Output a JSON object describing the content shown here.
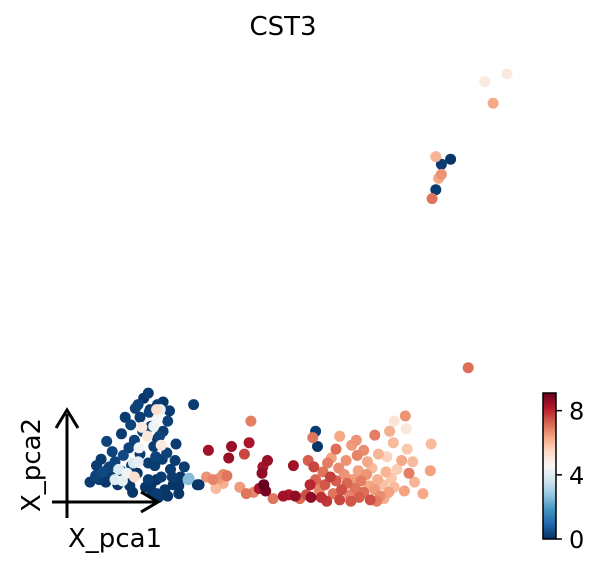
{
  "chart_data": {
    "type": "scatter",
    "title": "CST3",
    "xlabel": "X_pca1",
    "ylabel": "X_pca2",
    "xlim": [
      0,
      30
    ],
    "ylim": [
      0,
      29
    ],
    "grid": false,
    "colormap": "RdBu_r",
    "colorbar": {
      "vmin": 0,
      "vmax": 9.1,
      "ticks": [
        "0",
        "4",
        "8"
      ],
      "tick_values": [
        0,
        4,
        8
      ],
      "placement": "right"
    },
    "points": [
      {
        "pc1": 3.2,
        "pc2": 2.3,
        "v": 0.3
      },
      {
        "pc1": 3.6,
        "pc2": 2.0,
        "v": 0.2
      },
      {
        "pc1": 4.0,
        "pc2": 2.6,
        "v": 0.4
      },
      {
        "pc1": 4.3,
        "pc2": 1.8,
        "v": 0.1
      },
      {
        "pc1": 4.6,
        "pc2": 2.9,
        "v": 0.3
      },
      {
        "pc1": 4.9,
        "pc2": 2.2,
        "v": 0.2
      },
      {
        "pc1": 5.3,
        "pc2": 3.4,
        "v": 0.3
      },
      {
        "pc1": 5.6,
        "pc2": 1.6,
        "v": 0.1
      },
      {
        "pc1": 5.9,
        "pc2": 2.7,
        "v": 0.2
      },
      {
        "pc1": 6.2,
        "pc2": 3.9,
        "v": 0.4
      },
      {
        "pc1": 6.5,
        "pc2": 2.1,
        "v": 0.2
      },
      {
        "pc1": 6.8,
        "pc2": 4.5,
        "v": 0.3
      },
      {
        "pc1": 7.1,
        "pc2": 3.1,
        "v": 0.2
      },
      {
        "pc1": 7.4,
        "pc2": 5.1,
        "v": 0.3
      },
      {
        "pc1": 7.7,
        "pc2": 2.5,
        "v": 0.1
      },
      {
        "pc1": 8.0,
        "pc2": 4.0,
        "v": 0.2
      },
      {
        "pc1": 8.3,
        "pc2": 5.8,
        "v": 0.3
      },
      {
        "pc1": 8.6,
        "pc2": 1.4,
        "v": 0.1
      },
      {
        "pc1": 8.9,
        "pc2": 3.3,
        "v": 0.2
      },
      {
        "pc1": 9.2,
        "pc2": 6.2,
        "v": 0.4
      },
      {
        "pc1": 9.5,
        "pc2": 4.6,
        "v": 0.2
      },
      {
        "pc1": 9.8,
        "pc2": 2.0,
        "v": 0.1
      },
      {
        "pc1": 10.1,
        "pc2": 5.4,
        "v": 0.3
      },
      {
        "pc1": 10.4,
        "pc2": 3.6,
        "v": 0.2
      },
      {
        "pc1": 10.7,
        "pc2": 1.2,
        "v": 0.1
      },
      {
        "pc1": 11.0,
        "pc2": 6.6,
        "v": 0.3
      },
      {
        "pc1": 11.3,
        "pc2": 2.8,
        "v": 0.2
      },
      {
        "pc1": 11.6,
        "pc2": 1.6,
        "v": 0.1
      },
      {
        "pc1": 11.9,
        "pc2": 4.8,
        "v": 0.2
      },
      {
        "pc1": 12.2,
        "pc2": 0.9,
        "v": 0.1
      },
      {
        "pc1": 5.0,
        "pc2": 4.2,
        "v": 0.3
      },
      {
        "pc1": 6.0,
        "pc2": 5.6,
        "v": 0.2
      },
      {
        "pc1": 7.0,
        "pc2": 6.3,
        "v": 0.3
      },
      {
        "pc1": 8.0,
        "pc2": 6.9,
        "v": 0.2
      },
      {
        "pc1": 9.0,
        "pc2": 7.3,
        "v": 0.3
      },
      {
        "pc1": 9.9,
        "pc2": 7.9,
        "v": 0.2
      },
      {
        "pc1": 10.5,
        "pc2": 8.1,
        "v": 0.1
      },
      {
        "pc1": 11.2,
        "pc2": 7.4,
        "v": 0.2
      },
      {
        "pc1": 7.5,
        "pc2": 7.6,
        "v": 0.3
      },
      {
        "pc1": 6.4,
        "pc2": 6.9,
        "v": 0.2
      },
      {
        "pc1": 4.4,
        "pc2": 5.0,
        "v": 0.3
      },
      {
        "pc1": 3.8,
        "pc2": 3.6,
        "v": 0.2
      },
      {
        "pc1": 9.3,
        "pc2": 1.0,
        "v": 0.1
      },
      {
        "pc1": 10.0,
        "pc2": 0.6,
        "v": 0.1
      },
      {
        "pc1": 7.2,
        "pc2": 1.0,
        "v": 0.1
      },
      {
        "pc1": 11.8,
        "pc2": 3.5,
        "v": 0.2
      },
      {
        "pc1": 12.4,
        "pc2": 2.2,
        "v": 0.1
      },
      {
        "pc1": 12.8,
        "pc2": 3.0,
        "v": 0.2
      },
      {
        "pc1": 2.6,
        "pc2": 1.8,
        "v": 0.2
      },
      {
        "pc1": 8.4,
        "pc2": 8.4,
        "v": 0.1
      },
      {
        "pc1": 8.9,
        "pc2": 8.8,
        "v": 0.2
      },
      {
        "pc1": 6.1,
        "pc2": 1.9,
        "v": 4.2
      },
      {
        "pc1": 6.6,
        "pc2": 2.5,
        "v": 4.4
      },
      {
        "pc1": 5.3,
        "pc2": 2.0,
        "v": 4.0
      },
      {
        "pc1": 5.7,
        "pc2": 2.8,
        "v": 3.9
      },
      {
        "pc1": 7.4,
        "pc2": 2.2,
        "v": 5.3
      },
      {
        "pc1": 7.8,
        "pc2": 3.4,
        "v": 4.1
      },
      {
        "pc1": 9.5,
        "pc2": 6.2,
        "v": 4.3
      },
      {
        "pc1": 9.9,
        "pc2": 6.8,
        "v": 4.5
      },
      {
        "pc1": 10.2,
        "pc2": 7.5,
        "v": 4.2
      },
      {
        "pc1": 8.8,
        "pc2": 5.4,
        "v": 5.1
      },
      {
        "pc1": 8.2,
        "pc2": 6.1,
        "v": 5.0
      },
      {
        "pc1": 7.9,
        "pc2": 4.5,
        "v": 4.4
      },
      {
        "pc1": 7.3,
        "pc2": 3.3,
        "v": 3.8
      },
      {
        "pc1": 13.2,
        "pc2": 2.0,
        "v": 2.6
      },
      {
        "pc1": 7.8,
        "pc2": 7.9,
        "v": 0.3
      },
      {
        "pc1": 10.5,
        "pc2": 5.8,
        "v": 0.2
      },
      {
        "pc1": 11.5,
        "pc2": 2.2,
        "v": 0.2
      },
      {
        "pc1": 6.9,
        "pc2": 1.5,
        "v": 0.1
      },
      {
        "pc1": 13.8,
        "pc2": 7.9,
        "v": 0.2
      },
      {
        "pc1": 8.9,
        "pc2": 2.0,
        "v": 0.2
      },
      {
        "pc1": 9.6,
        "pc2": 3.1,
        "v": 0.2
      },
      {
        "pc1": 10.9,
        "pc2": 4.1,
        "v": 0.3
      },
      {
        "pc1": 4.7,
        "pc2": 3.0,
        "v": 0.3
      },
      {
        "pc1": 3.3,
        "pc2": 3.1,
        "v": 0.2
      },
      {
        "pc1": 14.2,
        "pc2": 1.6,
        "v": 0.1
      },
      {
        "pc1": 9.2,
        "pc2": 1.6,
        "v": 0.1
      },
      {
        "pc1": 11.0,
        "pc2": 0.7,
        "v": 0.1
      },
      {
        "pc1": 12.2,
        "pc2": 1.5,
        "v": 0.1
      },
      {
        "pc1": 9.8,
        "pc2": 0.9,
        "v": 0.2
      },
      {
        "pc1": 10.3,
        "pc2": 2.2,
        "v": 0.2
      },
      {
        "pc1": 9.1,
        "pc2": 7.5,
        "v": 0.2
      },
      {
        "pc1": 9.9,
        "pc2": 5.2,
        "v": 0.1
      },
      {
        "pc1": 9.7,
        "pc2": 3.8,
        "v": 0.3
      },
      {
        "pc1": 9.8,
        "pc2": 7.5,
        "v": 5.3
      },
      {
        "pc1": 10.3,
        "pc2": 4.7,
        "v": 5.0
      },
      {
        "pc1": 15.2,
        "pc2": 2.2,
        "v": 6.6
      },
      {
        "pc1": 15.9,
        "pc2": 2.0,
        "v": 6.8
      },
      {
        "pc1": 16.6,
        "pc2": 2.1,
        "v": 6.5
      },
      {
        "pc1": 17.0,
        "pc2": 1.7,
        "v": 6.2
      },
      {
        "pc1": 17.4,
        "pc2": 2.3,
        "v": 7.0
      },
      {
        "pc1": 16.2,
        "pc2": 1.3,
        "v": 6.0
      },
      {
        "pc1": 17.0,
        "pc2": 2.4,
        "v": 6.7
      },
      {
        "pc1": 14.4,
        "pc2": 1.6,
        "v": 0.1
      },
      {
        "pc1": 13.3,
        "pc2": 2.1,
        "v": 2.5
      },
      {
        "pc1": 15.4,
        "pc2": 4.3,
        "v": 8.4
      },
      {
        "pc1": 17.9,
        "pc2": 4.6,
        "v": 8.5
      },
      {
        "pc1": 17.6,
        "pc2": 3.7,
        "v": 8.5
      },
      {
        "pc1": 20.0,
        "pc2": 6.6,
        "v": 6.9
      },
      {
        "pc1": 19.8,
        "pc2": 4.9,
        "v": 8.3
      },
      {
        "pc1": 19.3,
        "pc2": 4.0,
        "v": 7.6
      },
      {
        "pc1": 21.3,
        "pc2": 3.0,
        "v": 8.3
      },
      {
        "pc1": 21.8,
        "pc2": 3.5,
        "v": 8.5
      },
      {
        "pc1": 21.2,
        "pc2": 2.5,
        "v": 8.6
      },
      {
        "pc1": 20.9,
        "pc2": 1.3,
        "v": 8.3
      },
      {
        "pc1": 21.6,
        "pc2": 1.1,
        "v": 8.9
      },
      {
        "pc1": 21.4,
        "pc2": 1.6,
        "v": 9.1
      },
      {
        "pc1": 24.6,
        "pc2": 3.1,
        "v": 8.4
      },
      {
        "pc1": 22.4,
        "pc2": 0.5,
        "v": 7.0
      },
      {
        "pc1": 23.5,
        "pc2": 0.7,
        "v": 8.4
      },
      {
        "pc1": 24.1,
        "pc2": 0.8,
        "v": 8.2
      },
      {
        "pc1": 24.8,
        "pc2": 0.7,
        "v": 8.6
      },
      {
        "pc1": 25.3,
        "pc2": 0.5,
        "v": 7.1
      },
      {
        "pc1": 26.0,
        "pc2": 0.8,
        "v": 7.5
      },
      {
        "pc1": 26.5,
        "pc2": 0.6,
        "v": 8.6
      },
      {
        "pc1": 18.8,
        "pc2": 1.4,
        "v": 6.5
      },
      {
        "pc1": 19.5,
        "pc2": 0.9,
        "v": 7.0
      },
      {
        "pc1": 20.3,
        "pc2": 1.0,
        "v": 6.8
      },
      {
        "pc1": 27.0,
        "pc2": 5.8,
        "v": 0.2
      },
      {
        "pc1": 27.2,
        "pc2": 4.6,
        "v": 0.1
      },
      {
        "pc1": 26.7,
        "pc2": 5.3,
        "v": 7.0
      },
      {
        "pc1": 26.2,
        "pc2": 3.5,
        "v": 7.3
      },
      {
        "pc1": 26.8,
        "pc2": 3.0,
        "v": 7.6
      },
      {
        "pc1": 27.0,
        "pc2": 2.0,
        "v": 7.2
      },
      {
        "pc1": 27.4,
        "pc2": 1.2,
        "v": 6.8
      },
      {
        "pc1": 27.8,
        "pc2": 2.6,
        "v": 7.0
      },
      {
        "pc1": 28.0,
        "pc2": 1.6,
        "v": 7.4
      },
      {
        "pc1": 28.3,
        "pc2": 3.3,
        "v": 6.9
      },
      {
        "pc1": 28.6,
        "pc2": 2.2,
        "v": 7.7
      },
      {
        "pc1": 28.9,
        "pc2": 0.9,
        "v": 7.0
      },
      {
        "pc1": 29.2,
        "pc2": 1.9,
        "v": 7.3
      },
      {
        "pc1": 29.5,
        "pc2": 2.9,
        "v": 6.7
      },
      {
        "pc1": 29.8,
        "pc2": 1.2,
        "v": 7.5
      },
      {
        "pc1": 30.1,
        "pc2": 2.4,
        "v": 6.6
      },
      {
        "pc1": 30.4,
        "pc2": 1.7,
        "v": 7.2
      },
      {
        "pc1": 30.7,
        "pc2": 0.8,
        "v": 6.8
      },
      {
        "pc1": 31.0,
        "pc2": 2.0,
        "v": 6.5
      },
      {
        "pc1": 31.3,
        "pc2": 1.3,
        "v": 7.0
      },
      {
        "pc1": 31.6,
        "pc2": 2.7,
        "v": 6.4
      },
      {
        "pc1": 31.9,
        "pc2": 1.9,
        "v": 6.9
      },
      {
        "pc1": 32.2,
        "pc2": 1.0,
        "v": 7.1
      },
      {
        "pc1": 32.5,
        "pc2": 2.4,
        "v": 6.6
      },
      {
        "pc1": 32.8,
        "pc2": 1.5,
        "v": 6.3
      },
      {
        "pc1": 33.1,
        "pc2": 2.9,
        "v": 6.0
      },
      {
        "pc1": 33.4,
        "pc2": 1.2,
        "v": 6.5
      },
      {
        "pc1": 33.7,
        "pc2": 2.0,
        "v": 6.2
      },
      {
        "pc1": 34.0,
        "pc2": 0.7,
        "v": 6.7
      },
      {
        "pc1": 34.3,
        "pc2": 1.6,
        "v": 5.9
      },
      {
        "pc1": 34.6,
        "pc2": 2.6,
        "v": 6.1
      },
      {
        "pc1": 34.9,
        "pc2": 1.0,
        "v": 6.4
      },
      {
        "pc1": 35.2,
        "pc2": 2.1,
        "v": 5.8
      },
      {
        "pc1": 35.5,
        "pc2": 1.4,
        "v": 6.0
      },
      {
        "pc1": 35.8,
        "pc2": 2.8,
        "v": 5.7
      },
      {
        "pc1": 26.4,
        "pc2": 1.6,
        "v": 8.0
      },
      {
        "pc1": 27.6,
        "pc2": 0.6,
        "v": 7.9
      },
      {
        "pc1": 28.2,
        "pc2": 0.3,
        "v": 7.8
      },
      {
        "pc1": 29.6,
        "pc2": 0.4,
        "v": 7.6
      },
      {
        "pc1": 30.8,
        "pc2": 0.3,
        "v": 7.4
      },
      {
        "pc1": 31.7,
        "pc2": 0.6,
        "v": 7.3
      },
      {
        "pc1": 32.9,
        "pc2": 0.4,
        "v": 7.5
      },
      {
        "pc1": 33.6,
        "pc2": 0.3,
        "v": 6.9
      },
      {
        "pc1": 34.4,
        "pc2": 0.5,
        "v": 6.2
      },
      {
        "pc1": 28.7,
        "pc2": 3.7,
        "v": 6.4
      },
      {
        "pc1": 30.3,
        "pc2": 3.5,
        "v": 6.6
      },
      {
        "pc1": 31.5,
        "pc2": 3.9,
        "v": 6.8
      },
      {
        "pc1": 32.6,
        "pc2": 3.4,
        "v": 6.3
      },
      {
        "pc1": 33.8,
        "pc2": 4.0,
        "v": 6.1
      },
      {
        "pc1": 29.2,
        "pc2": 4.4,
        "v": 7.1
      },
      {
        "pc1": 30.9,
        "pc2": 4.7,
        "v": 6.5
      },
      {
        "pc1": 32.2,
        "pc2": 4.3,
        "v": 6.7
      },
      {
        "pc1": 34.7,
        "pc2": 3.8,
        "v": 5.6
      },
      {
        "pc1": 35.4,
        "pc2": 4.9,
        "v": 6.0
      },
      {
        "pc1": 36.3,
        "pc2": 3.5,
        "v": 6.3
      },
      {
        "pc1": 37.1,
        "pc2": 2.5,
        "v": 6.9
      },
      {
        "pc1": 37.7,
        "pc2": 1.8,
        "v": 6.1
      },
      {
        "pc1": 36.6,
        "pc2": 1.1,
        "v": 6.4
      },
      {
        "pc1": 37.5,
        "pc2": 3.4,
        "v": 6.0
      },
      {
        "pc1": 36.9,
        "pc2": 4.4,
        "v": 5.8
      },
      {
        "pc1": 35.0,
        "pc2": 5.8,
        "v": 6.2
      },
      {
        "pc1": 33.4,
        "pc2": 5.5,
        "v": 6.9
      },
      {
        "pc1": 31.4,
        "pc2": 5.1,
        "v": 6.6
      },
      {
        "pc1": 29.6,
        "pc2": 5.4,
        "v": 6.3
      },
      {
        "pc1": 36.7,
        "pc2": 7.0,
        "v": 6.6
      },
      {
        "pc1": 39.5,
        "pc2": 4.8,
        "v": 6.0
      },
      {
        "pc1": 39.4,
        "pc2": 2.7,
        "v": 6.4
      },
      {
        "pc1": 38.6,
        "pc2": 0.9,
        "v": 6.3
      },
      {
        "pc1": 36.8,
        "pc2": 6.0,
        "v": 5.1
      },
      {
        "pc1": 35.5,
        "pc2": 6.6,
        "v": 5.2
      },
      {
        "pc1": 43.5,
        "pc2": 10.8,
        "v": 7.1
      },
      {
        "pc1": 45.3,
        "pc2": 33.3,
        "v": 5.0
      },
      {
        "pc1": 47.7,
        "pc2": 33.9,
        "v": 5.0
      },
      {
        "pc1": 46.2,
        "pc2": 31.6,
        "v": 6.3
      },
      {
        "pc1": 40.0,
        "pc2": 27.4,
        "v": 6.1
      },
      {
        "pc1": 40.6,
        "pc2": 26.8,
        "v": 0.2
      },
      {
        "pc1": 41.6,
        "pc2": 27.2,
        "v": 0.1
      },
      {
        "pc1": 40.3,
        "pc2": 25.7,
        "v": 6.3
      },
      {
        "pc1": 40.6,
        "pc2": 26.0,
        "v": 6.6
      },
      {
        "pc1": 40.0,
        "pc2": 24.8,
        "v": 0.2
      },
      {
        "pc1": 39.6,
        "pc2": 24.1,
        "v": 7.0
      }
    ]
  }
}
